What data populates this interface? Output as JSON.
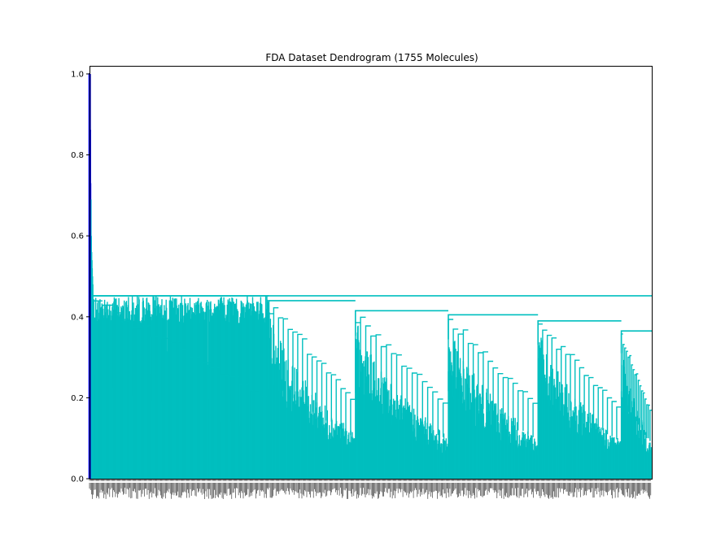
{
  "chart_data": {
    "type": "dendrogram",
    "title": "FDA Dataset Dendrogram (1755 Molecules)",
    "leaf_count": 1755,
    "ylim": [
      0,
      1.02
    ],
    "yticks": [
      0.0,
      0.2,
      0.4,
      0.6,
      0.8,
      1.0
    ],
    "ytick_labels": [
      "0.0",
      "0.2",
      "0.4",
      "0.6",
      "0.8",
      "1.0"
    ],
    "xlabel": "",
    "ylabel": "",
    "grid": false,
    "colors": {
      "cluster_link": "#00bfbf",
      "root_link": "#0000ff",
      "axes": "#000000"
    },
    "root_merge_heights": [
      1.0,
      0.86,
      0.73,
      0.69,
      0.6,
      0.56,
      0.54,
      0.52,
      0.5,
      0.48
    ],
    "main_cluster": {
      "leaf_range": [
        10,
        1755
      ],
      "top_merge_height": 0.452
    },
    "subclusters": [
      {
        "leaf_range": [
          10,
          560
        ],
        "merge_height": 0.452
      },
      {
        "leaf_range": [
          560,
          830
        ],
        "merge_height": 0.44
      },
      {
        "leaf_range": [
          830,
          1120
        ],
        "merge_height": 0.415
      },
      {
        "leaf_range": [
          1120,
          1400
        ],
        "merge_height": 0.405
      },
      {
        "leaf_range": [
          1400,
          1660
        ],
        "merge_height": 0.39
      },
      {
        "leaf_range": [
          1660,
          1755
        ],
        "merge_height": 0.365
      }
    ]
  }
}
